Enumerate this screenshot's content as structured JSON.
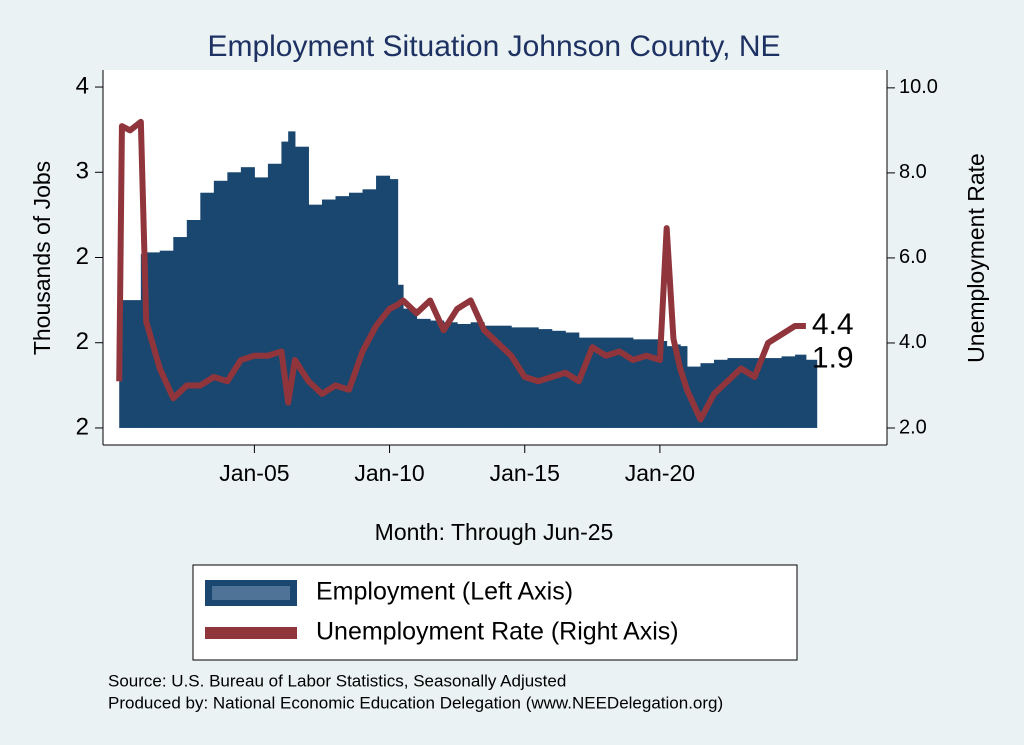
{
  "chart_data": {
    "type": "bar-line",
    "title": "Employment Situation Johnson  County, NE",
    "x_label": "Month: Through Jun-25",
    "y_label": "Thousands of Jobs",
    "y2_label": "Unemployment Rate",
    "x": [
      2000.0,
      2000.1,
      2000.4,
      2000.8,
      2001.0,
      2001.5,
      2002.0,
      2002.5,
      2003.0,
      2003.5,
      2004.0,
      2004.5,
      2005.0,
      2005.5,
      2006.0,
      2006.25,
      2006.5,
      2007.0,
      2007.5,
      2008.0,
      2008.5,
      2009.0,
      2009.5,
      2010.0,
      2010.3,
      2010.5,
      2011.0,
      2011.5,
      2012.0,
      2012.5,
      2013.0,
      2013.5,
      2014.0,
      2014.5,
      2015.0,
      2015.5,
      2016.0,
      2016.5,
      2017.0,
      2017.5,
      2018.0,
      2018.5,
      2019.0,
      2019.5,
      2020.0,
      2020.25,
      2020.5,
      2020.75,
      2021.0,
      2021.5,
      2022.0,
      2022.5,
      2023.0,
      2023.5,
      2024.0,
      2024.5,
      2025.0,
      2025.4
    ],
    "series": [
      {
        "name": "Employment (Left Axis)",
        "color": "#1a476f",
        "axis": "y",
        "values": [
          2.5,
          2.25,
          2.25,
          2.52,
          2.53,
          2.54,
          2.62,
          2.72,
          2.88,
          2.95,
          3.0,
          3.03,
          2.97,
          3.05,
          3.18,
          3.24,
          3.15,
          2.81,
          2.84,
          2.86,
          2.88,
          2.9,
          2.98,
          2.96,
          2.34,
          2.2,
          2.14,
          2.13,
          2.12,
          2.11,
          2.12,
          2.1,
          2.1,
          2.09,
          2.09,
          2.08,
          2.07,
          2.06,
          2.03,
          2.03,
          2.03,
          2.03,
          2.02,
          2.02,
          2.01,
          1.98,
          1.99,
          1.98,
          1.86,
          1.88,
          1.9,
          1.91,
          1.91,
          1.91,
          1.91,
          1.92,
          1.93,
          1.9
        ]
      },
      {
        "name": "Unemployment Rate (Right Axis)",
        "color": "#90353b",
        "axis": "y2",
        "values": [
          3.1,
          9.1,
          9.0,
          9.2,
          4.5,
          3.4,
          2.7,
          3.0,
          3.0,
          3.2,
          3.1,
          3.6,
          3.7,
          3.7,
          3.8,
          2.6,
          3.6,
          3.1,
          2.8,
          3.0,
          2.9,
          3.8,
          4.4,
          4.8,
          4.9,
          5.0,
          4.7,
          5.0,
          4.3,
          4.8,
          5.0,
          4.3,
          4.0,
          3.7,
          3.2,
          3.1,
          3.2,
          3.3,
          3.1,
          3.9,
          3.7,
          3.8,
          3.6,
          3.7,
          3.6,
          6.7,
          4.1,
          3.4,
          2.9,
          2.2,
          2.8,
          3.1,
          3.4,
          3.2,
          4.0,
          4.2,
          4.4,
          4.4
        ]
      }
    ],
    "xlim": [
      1999.4,
      2028.4
    ],
    "xticks": [
      {
        "value": 2005,
        "label": "Jan-05"
      },
      {
        "value": 2010,
        "label": "Jan-10"
      },
      {
        "value": 2015,
        "label": "Jan-15"
      },
      {
        "value": 2020,
        "label": "Jan-20"
      }
    ],
    "ylim": [
      1.4,
      3.6
    ],
    "yticks": [
      {
        "value": 1.5,
        "label": "2"
      },
      {
        "value": 2.0,
        "label": "2"
      },
      {
        "value": 2.5,
        "label": "2"
      },
      {
        "value": 3.0,
        "label": "3"
      },
      {
        "value": 3.5,
        "label": "4"
      }
    ],
    "y2lim": [
      1.6,
      10.42
    ],
    "y2ticks": [
      {
        "value": 2,
        "label": "2.0"
      },
      {
        "value": 4,
        "label": "4.0"
      },
      {
        "value": 6,
        "label": "6.0"
      },
      {
        "value": 8,
        "label": "8.0"
      },
      {
        "value": 10,
        "label": "10.0"
      }
    ],
    "notes": [
      "Source: U.S. Bureau of Labor Statistics, Seasonally Adjusted",
      "Produced by: National Economic Education Delegation (www.NEEDelegation.org)"
    ]
  }
}
